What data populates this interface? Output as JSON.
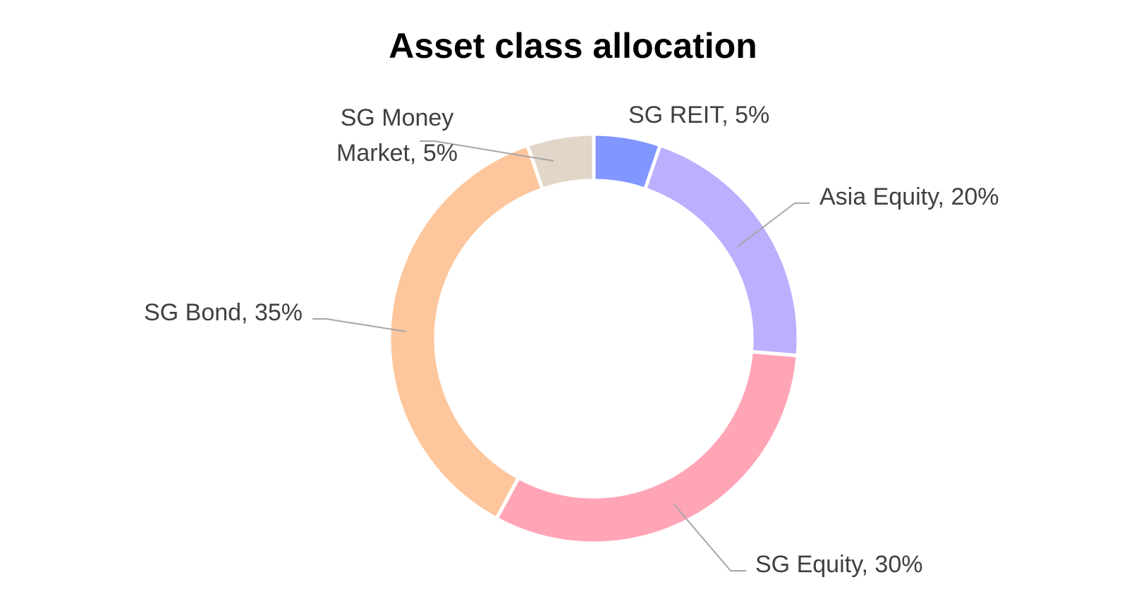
{
  "chart_data": {
    "type": "pie",
    "variant": "donut",
    "title": "Asset class allocation",
    "slices": [
      {
        "name": "SG REIT",
        "value": 5,
        "label": "SG REIT, 5%",
        "color": "#8196ff"
      },
      {
        "name": "Asia Equity",
        "value": 20,
        "label": "Asia Equity, 20%",
        "color": "#bbaffe"
      },
      {
        "name": "SG Equity",
        "value": 30,
        "label": "SG Equity, 30%",
        "color": "#ffa5b6"
      },
      {
        "name": "SG Bond",
        "value": 35,
        "label": "SG Bond, 35%",
        "color": "#fec69c"
      },
      {
        "name": "SG Money Market",
        "value": 5,
        "label_lines": [
          "SG Money",
          "Market, 5%"
        ],
        "color": "#e2d6c8"
      }
    ],
    "legend": "none",
    "leader_line_color": "#a6a6a6"
  }
}
